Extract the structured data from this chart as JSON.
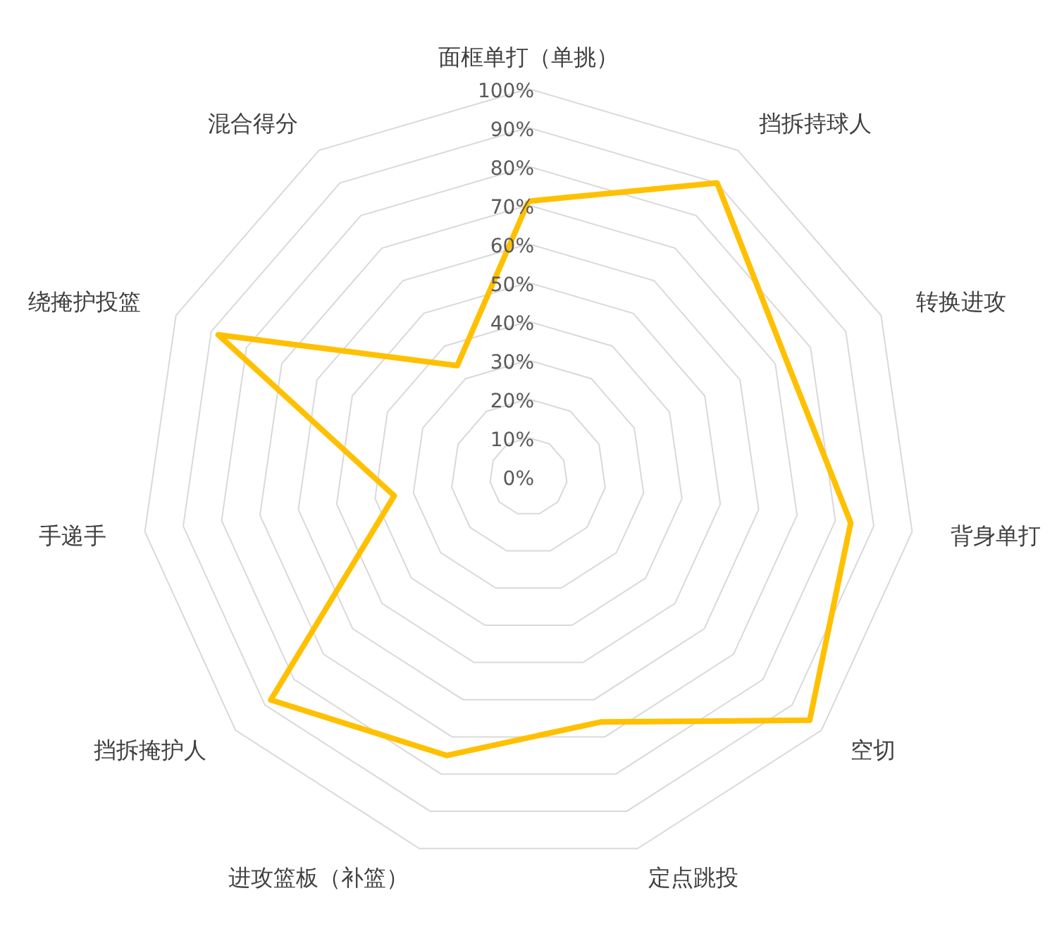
{
  "chart_data": {
    "type": "radar",
    "categories": [
      "面框单打（单挑）",
      "挡拆持球人",
      "转换进攻",
      "背身单打",
      "空切",
      "定点跳投",
      "进攻篮板（补篮）",
      "挡拆掩护人",
      "手递手",
      "绕掩护投篮",
      "混合得分"
    ],
    "series": [
      {
        "color": "#ffc000",
        "values": [
          71,
          90,
          73,
          84,
          96,
          66,
          75,
          88,
          35,
          88,
          34
        ]
      }
    ],
    "ylim": [
      0,
      100
    ],
    "yticks": [
      {
        "value": 0,
        "label": "0%"
      },
      {
        "value": 10,
        "label": "10%"
      },
      {
        "value": 20,
        "label": "20%"
      },
      {
        "value": 30,
        "label": "30%"
      },
      {
        "value": 40,
        "label": "40%"
      },
      {
        "value": 50,
        "label": "50%"
      },
      {
        "value": 60,
        "label": "60%"
      },
      {
        "value": 70,
        "label": "70%"
      },
      {
        "value": 80,
        "label": "80%"
      },
      {
        "value": 90,
        "label": "90%"
      },
      {
        "value": 100,
        "label": "100%"
      }
    ],
    "grid": true
  }
}
